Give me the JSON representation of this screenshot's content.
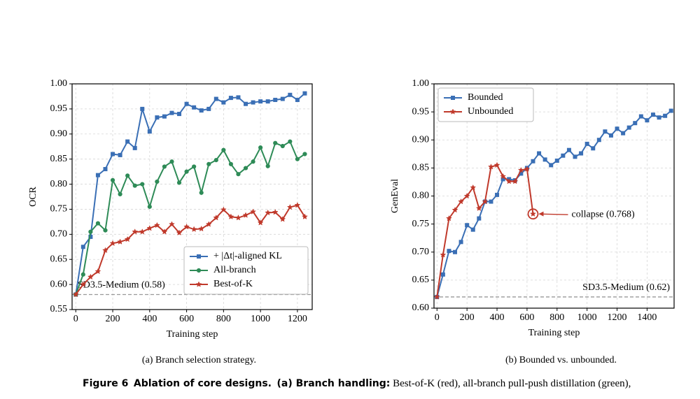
{
  "chart_data": [
    {
      "type": "line",
      "xlabel": "Training step",
      "ylabel": "OCR",
      "subcaption": "(a) Branch selection strategy.",
      "xlim": [
        -20,
        1280
      ],
      "ylim": [
        0.55,
        1.0
      ],
      "xticks": [
        0,
        200,
        400,
        600,
        800,
        1000,
        1200
      ],
      "yticks": [
        {
          "value": 0.55,
          "label": "0.55"
        },
        {
          "value": 0.6,
          "label": "0.60"
        },
        {
          "value": 0.65,
          "label": "0.65"
        },
        {
          "value": 0.7,
          "label": "0.70"
        },
        {
          "value": 0.75,
          "label": "0.75"
        },
        {
          "value": 0.8,
          "label": "0.80"
        },
        {
          "value": 0.85,
          "label": "0.85"
        },
        {
          "value": 0.9,
          "label": "0.90"
        },
        {
          "value": 0.95,
          "label": "0.95"
        },
        {
          "value": 1.0,
          "label": "1.00"
        }
      ],
      "grid": true,
      "legend": "lower right",
      "baseline": {
        "value": 0.58,
        "label": "SD3.5-Medium (0.58)",
        "color": "#999999"
      },
      "series": [
        {
          "name": "+ |Δt|-aligned KL",
          "color": "#3a6fb5",
          "marker": "square",
          "x": [
            0,
            40,
            80,
            120,
            160,
            200,
            240,
            280,
            320,
            360,
            400,
            440,
            480,
            520,
            560,
            600,
            640,
            680,
            720,
            760,
            800,
            840,
            880,
            920,
            960,
            1000,
            1040,
            1080,
            1120,
            1160,
            1200,
            1240
          ],
          "values": [
            0.58,
            0.675,
            0.695,
            0.818,
            0.83,
            0.86,
            0.858,
            0.885,
            0.872,
            0.95,
            0.905,
            0.933,
            0.935,
            0.942,
            0.94,
            0.96,
            0.953,
            0.947,
            0.95,
            0.97,
            0.963,
            0.972,
            0.973,
            0.96,
            0.963,
            0.965,
            0.965,
            0.968,
            0.97,
            0.978,
            0.968,
            0.981
          ]
        },
        {
          "name": "All-branch",
          "color": "#2e8b57",
          "marker": "circle",
          "x": [
            0,
            40,
            80,
            120,
            160,
            200,
            240,
            280,
            320,
            360,
            400,
            440,
            480,
            520,
            560,
            600,
            640,
            680,
            720,
            760,
            800,
            840,
            880,
            920,
            960,
            1000,
            1040,
            1080,
            1120,
            1160,
            1200,
            1240
          ],
          "values": [
            0.58,
            0.62,
            0.705,
            0.722,
            0.708,
            0.808,
            0.78,
            0.817,
            0.797,
            0.8,
            0.755,
            0.805,
            0.835,
            0.845,
            0.803,
            0.825,
            0.835,
            0.783,
            0.84,
            0.848,
            0.868,
            0.84,
            0.82,
            0.832,
            0.845,
            0.873,
            0.836,
            0.882,
            0.876,
            0.885,
            0.85,
            0.86
          ]
        },
        {
          "name": "Best-of-K",
          "color": "#c0392b",
          "marker": "star",
          "x": [
            0,
            40,
            80,
            120,
            160,
            200,
            240,
            280,
            320,
            360,
            400,
            440,
            480,
            520,
            560,
            600,
            640,
            680,
            720,
            760,
            800,
            840,
            880,
            920,
            960,
            1000,
            1040,
            1080,
            1120,
            1160,
            1200,
            1240
          ],
          "values": [
            0.58,
            0.6,
            0.615,
            0.626,
            0.668,
            0.682,
            0.685,
            0.69,
            0.705,
            0.705,
            0.712,
            0.718,
            0.705,
            0.72,
            0.703,
            0.715,
            0.71,
            0.711,
            0.72,
            0.733,
            0.749,
            0.735,
            0.733,
            0.738,
            0.745,
            0.723,
            0.743,
            0.744,
            0.73,
            0.754,
            0.758,
            0.735
          ]
        }
      ]
    },
    {
      "type": "line",
      "xlabel": "Training step",
      "ylabel": "GenEval",
      "subcaption": "(b) Bounded vs. unbounded.",
      "xlim": [
        -20,
        1580
      ],
      "ylim": [
        0.6,
        1.0
      ],
      "xticks": [
        0,
        200,
        400,
        600,
        800,
        1000,
        1200,
        1400
      ],
      "yticks": [
        {
          "value": 0.6,
          "label": "0.60"
        },
        {
          "value": 0.65,
          "label": "0.65"
        },
        {
          "value": 0.7,
          "label": "0.70"
        },
        {
          "value": 0.75,
          "label": "0.75"
        },
        {
          "value": 0.8,
          "label": "0.80"
        },
        {
          "value": 0.85,
          "label": "0.85"
        },
        {
          "value": 0.9,
          "label": "0.90"
        },
        {
          "value": 0.95,
          "label": "0.95"
        },
        {
          "value": 1.0,
          "label": "1.00"
        }
      ],
      "grid": true,
      "legend": "upper left",
      "baseline": {
        "value": 0.62,
        "label": "SD3.5-Medium (0.62)",
        "color": "#999999"
      },
      "annotation": {
        "text": "collapse (0.768)",
        "x": 640,
        "y": 0.768,
        "color": "#c0392b"
      },
      "series": [
        {
          "name": "Bounded",
          "color": "#3a6fb5",
          "marker": "square",
          "x": [
            0,
            40,
            80,
            120,
            160,
            200,
            240,
            280,
            320,
            360,
            400,
            440,
            480,
            520,
            560,
            600,
            640,
            680,
            720,
            760,
            800,
            840,
            880,
            920,
            960,
            1000,
            1040,
            1080,
            1120,
            1160,
            1200,
            1240,
            1280,
            1320,
            1360,
            1400,
            1440,
            1480,
            1520,
            1560
          ],
          "values": [
            0.62,
            0.66,
            0.702,
            0.7,
            0.718,
            0.748,
            0.74,
            0.76,
            0.79,
            0.79,
            0.802,
            0.83,
            0.83,
            0.828,
            0.84,
            0.85,
            0.862,
            0.876,
            0.865,
            0.855,
            0.863,
            0.872,
            0.882,
            0.87,
            0.876,
            0.893,
            0.885,
            0.9,
            0.915,
            0.908,
            0.92,
            0.912,
            0.922,
            0.93,
            0.942,
            0.935,
            0.945,
            0.94,
            0.943,
            0.952
          ]
        },
        {
          "name": "Unbounded",
          "color": "#c0392b",
          "marker": "star",
          "x": [
            0,
            40,
            80,
            120,
            160,
            200,
            240,
            280,
            320,
            360,
            400,
            440,
            480,
            520,
            560,
            600,
            640
          ],
          "values": [
            0.62,
            0.695,
            0.76,
            0.775,
            0.79,
            0.8,
            0.815,
            0.778,
            0.79,
            0.852,
            0.855,
            0.835,
            0.826,
            0.826,
            0.846,
            0.848,
            0.768
          ]
        }
      ]
    }
  ],
  "caption": {
    "label": "Figure 6",
    "title": "Ablation of core designs.",
    "part_label": "(a) Branch handling:",
    "part_text": "Best-of-K (red), all-branch pull-push distillation (green),"
  }
}
